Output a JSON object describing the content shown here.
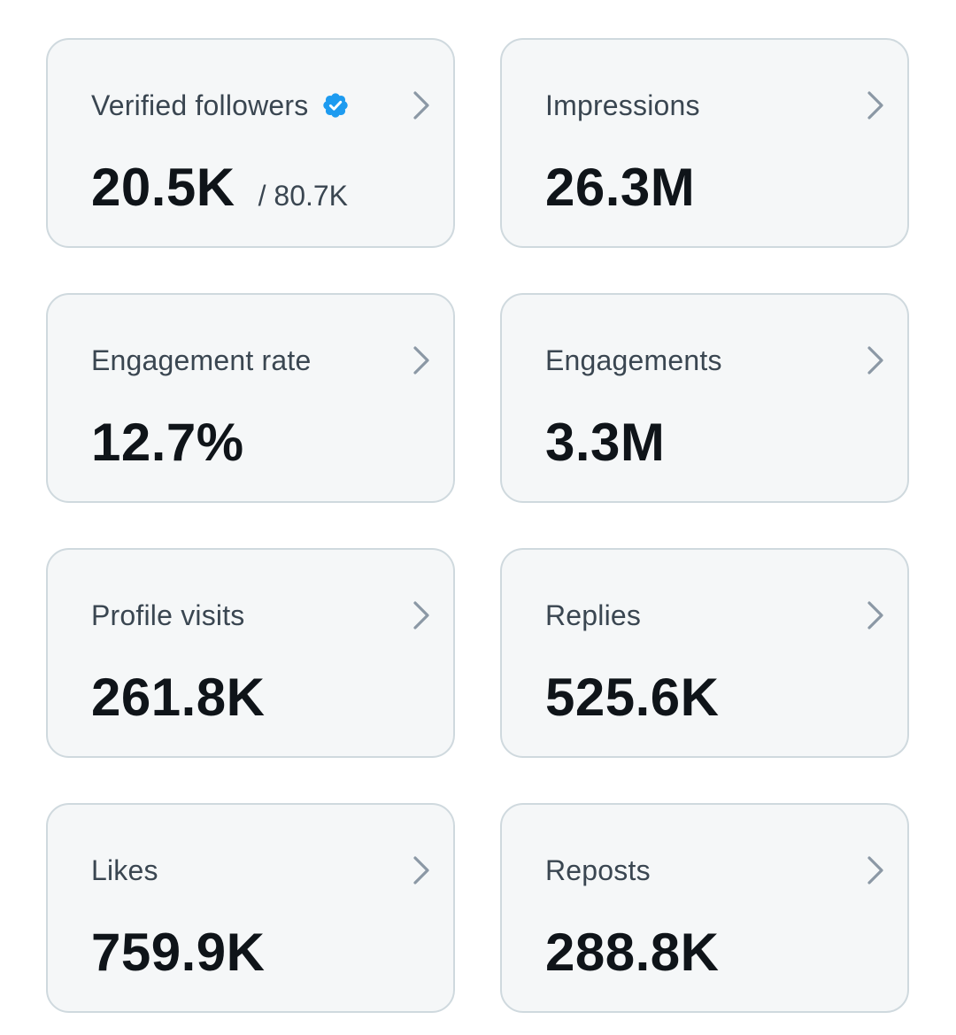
{
  "colors": {
    "card_background": "#f5f7f8",
    "card_border": "#cfd9de",
    "label_text": "#3a4651",
    "value_text": "#0f1419",
    "chevron": "#8b98a5",
    "verified_badge": "#1d9bf0"
  },
  "metrics": [
    {
      "label": "Verified followers",
      "value": "20.5K",
      "secondary": "/ 80.7K",
      "badge_icon": "verified-badge-icon",
      "action_icon": "chevron-right-icon"
    },
    {
      "label": "Impressions",
      "value": "26.3M",
      "action_icon": "chevron-right-icon"
    },
    {
      "label": "Engagement rate",
      "value": "12.7%",
      "action_icon": "chevron-right-icon"
    },
    {
      "label": "Engagements",
      "value": "3.3M",
      "action_icon": "chevron-right-icon"
    },
    {
      "label": "Profile visits",
      "value": "261.8K",
      "action_icon": "chevron-right-icon"
    },
    {
      "label": "Replies",
      "value": "525.6K",
      "action_icon": "chevron-right-icon"
    },
    {
      "label": "Likes",
      "value": "759.9K",
      "action_icon": "chevron-right-icon"
    },
    {
      "label": "Reposts",
      "value": "288.8K",
      "action_icon": "chevron-right-icon"
    }
  ]
}
